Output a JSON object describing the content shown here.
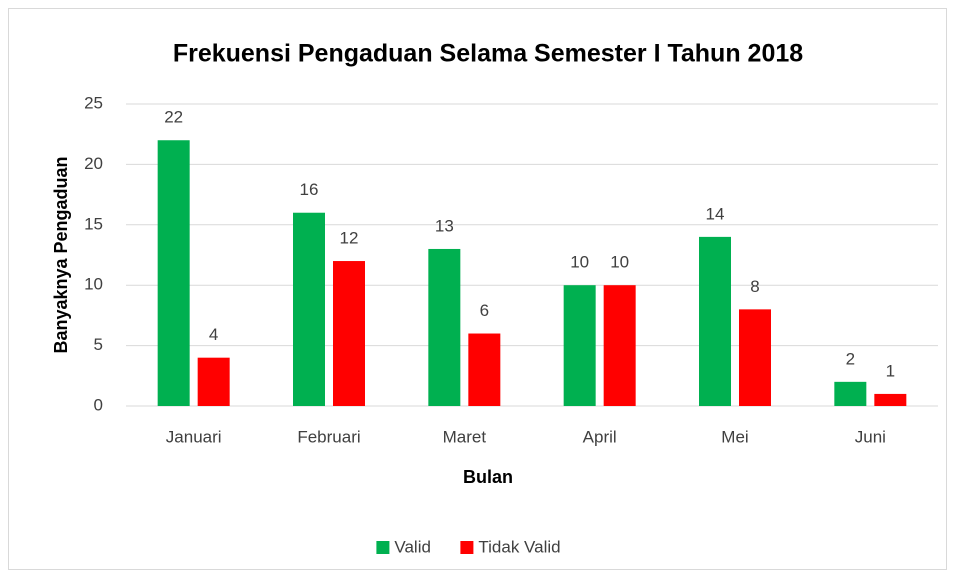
{
  "chart_data": {
    "type": "bar",
    "title": "Frekuensi Pengaduan Selama Semester I Tahun 2018",
    "x_label": "Bulan",
    "y_label": "Banyaknya Pengaduan",
    "categories": [
      "Januari",
      "Februari",
      "Maret",
      "April",
      "Mei",
      "Juni"
    ],
    "series": [
      {
        "name": "Valid",
        "color": "#00b050",
        "values": [
          22,
          16,
          13,
          10,
          14,
          2
        ]
      },
      {
        "name": "Tidak Valid",
        "color": "#ff0000",
        "values": [
          4,
          12,
          6,
          10,
          8,
          1
        ]
      }
    ],
    "ylim": [
      0,
      25
    ],
    "yticks": [
      0,
      5,
      10,
      15,
      20,
      25
    ],
    "grid": true,
    "legend": "bottom"
  }
}
